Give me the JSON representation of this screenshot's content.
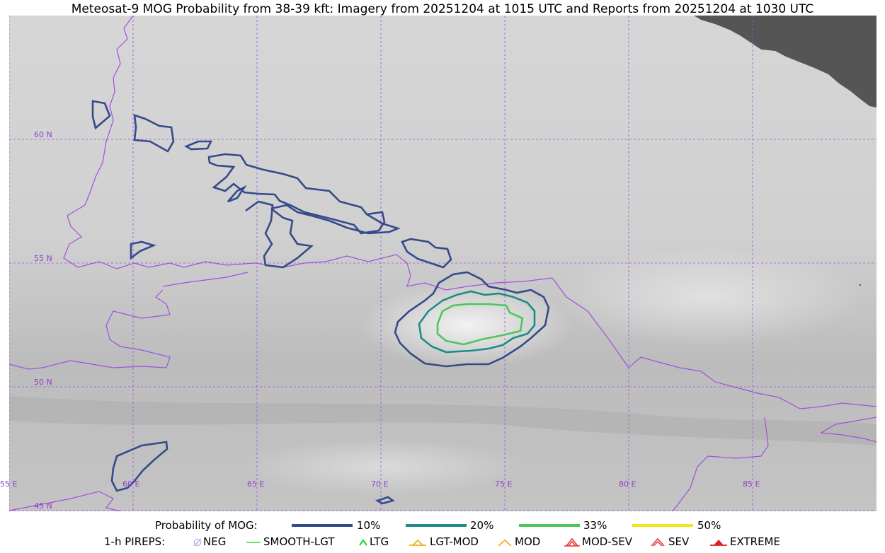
{
  "title": "Meteosat-9 MOG Probability from 38-39 kft: Imagery from 20251204 at 1015 UTC and Reports from 20251204 at 1030 UTC",
  "colors": {
    "grid": "#a050e0",
    "border": "#a050e0",
    "p10": "#354a8a",
    "p20": "#1e8c86",
    "p33": "#4dc65a",
    "p50": "#f2e41a",
    "neg": "#b8b8f0",
    "smooth_lgt": "#40d840",
    "ltg": "#20d020",
    "lgt_mod": "#f0b020",
    "mod": "#f0b020",
    "mod_sev": "#e83030",
    "sev": "#e83030",
    "extreme": "#e02020",
    "missing_data": "#555555"
  },
  "map": {
    "lat_labels": [
      "60 N",
      "55 N",
      "50 N",
      "45 N"
    ],
    "lon_labels": [
      "55 E",
      "60 E",
      "65 E",
      "70 E",
      "75 E",
      "80 E",
      "85 E"
    ]
  },
  "legend": {
    "prob_title": "Probability of MOG:",
    "prob_items": [
      {
        "label": "10%",
        "color_key": "p10"
      },
      {
        "label": "20%",
        "color_key": "p20"
      },
      {
        "label": "33%",
        "color_key": "p33"
      },
      {
        "label": "50%",
        "color_key": "p50"
      }
    ],
    "pirep_title": "1-h PIREPS:",
    "pirep_items": [
      {
        "label": "NEG",
        "icon": "neg-icon"
      },
      {
        "label": "SMOOTH-LGT",
        "icon": "smooth-lgt-icon"
      },
      {
        "label": "LTG",
        "icon": "ltg-icon"
      },
      {
        "label": "LGT-MOD",
        "icon": "lgt-mod-icon"
      },
      {
        "label": "MOD",
        "icon": "mod-icon"
      },
      {
        "label": "MOD-SEV",
        "icon": "mod-sev-icon"
      },
      {
        "label": "SEV",
        "icon": "sev-icon"
      },
      {
        "label": "EXTREME",
        "icon": "extreme-icon"
      }
    ]
  }
}
